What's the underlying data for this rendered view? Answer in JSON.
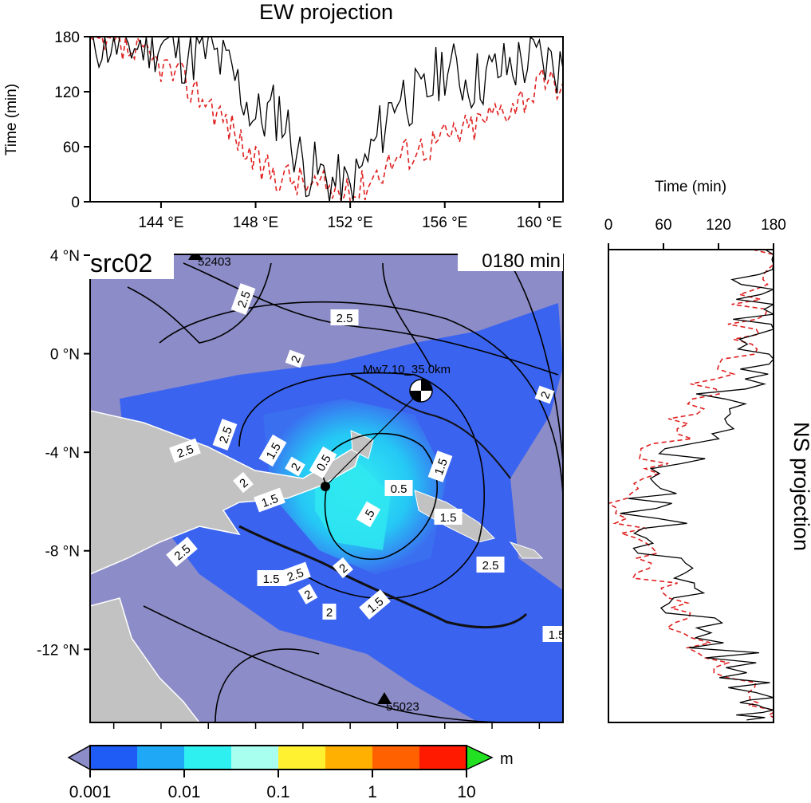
{
  "ew_panel": {
    "title": "EW projection",
    "ylabel": "Time (min)",
    "yticks": [
      "0",
      "60",
      "120",
      "180"
    ],
    "xticks": [
      "144 °E",
      "148 °E",
      "152 °E",
      "156 °E",
      "160 °E"
    ]
  },
  "ns_panel": {
    "title": "NS projection",
    "xlabel": "Time (min)",
    "xticks": [
      "0",
      "60",
      "120",
      "180"
    ]
  },
  "map": {
    "source_label": "src02",
    "time_label": "0180 min",
    "lat_ticks": [
      "4 °N",
      "0 °N",
      "-4 °N",
      "-8 °N",
      "-12 °N"
    ],
    "event_label": "Mw7.10_35.0km",
    "stations": [
      {
        "id": "52403"
      },
      {
        "id": "55023"
      }
    ],
    "contour_labels": [
      "2.5",
      "2.5",
      "2",
      "2",
      "2.5",
      "2.5",
      "1.5",
      "1.5",
      "2",
      "0.5",
      "0.5",
      "1.5",
      "1.5",
      ".5",
      "2.5",
      "2.5",
      "2.5",
      "2",
      "1.5",
      "2",
      "1.5",
      "2",
      "1.5",
      "2"
    ],
    "colors": {
      "ocean_low": "#8c8cc8",
      "ocean_mid": "#3a63f0",
      "ocean_high": "#2fe8f0",
      "land": "#c2c2c2"
    }
  },
  "colorbar": {
    "ticks": [
      "0.001",
      "0.01",
      "0.1",
      "1",
      "10"
    ],
    "unit": "m",
    "colors": [
      "#1e5cf5",
      "#1ea8f5",
      "#2ff0f0",
      "#a8fff0",
      "#fff030",
      "#ffb000",
      "#ff6000",
      "#ff1a00"
    ]
  },
  "chart_data": [
    {
      "type": "line",
      "title": "EW projection",
      "ylabel": "Time (min)",
      "xlabel": "",
      "xlim": [
        141,
        161
      ],
      "ylim": [
        0,
        180
      ],
      "series": [
        {
          "color": "#000000",
          "x": [
            141,
            142,
            143,
            144,
            145,
            146,
            147,
            148,
            149,
            150,
            151,
            152,
            153,
            154,
            155,
            156,
            157,
            158,
            159,
            160,
            161
          ],
          "values": [
            176,
            172,
            170,
            175,
            160,
            165,
            140,
            90,
            100,
            40,
            25,
            10,
            60,
            120,
            110,
            150,
            130,
            140,
            150,
            155,
            145
          ]
        },
        {
          "color": "#e02020",
          "x": [
            141,
            142,
            143,
            144,
            145,
            146,
            147,
            148,
            149,
            150,
            151,
            152,
            153,
            154,
            155,
            156,
            157,
            158,
            159,
            160,
            161
          ],
          "values": [
            172,
            168,
            160,
            150,
            130,
            110,
            80,
            40,
            30,
            20,
            15,
            5,
            30,
            50,
            60,
            70,
            80,
            95,
            110,
            125,
            130
          ]
        }
      ]
    },
    {
      "type": "line",
      "title": "NS projection",
      "xlabel": "Time (min)",
      "xlim": [
        0,
        180
      ],
      "ylim": [
        -15,
        4
      ],
      "series": [
        {
          "color": "#000000",
          "y": [
            4,
            2,
            0,
            -2,
            -4,
            -6,
            -8,
            -10,
            -12,
            -14,
            -15
          ],
          "values": [
            178,
            170,
            165,
            120,
            90,
            40,
            60,
            80,
            120,
            175,
            178
          ]
        },
        {
          "color": "#e02020",
          "y": [
            4,
            2,
            0,
            -2,
            -4,
            -6,
            -8,
            -10,
            -12,
            -14,
            -15
          ],
          "values": [
            176,
            160,
            140,
            100,
            60,
            10,
            30,
            60,
            100,
            160,
            172
          ]
        }
      ]
    }
  ]
}
